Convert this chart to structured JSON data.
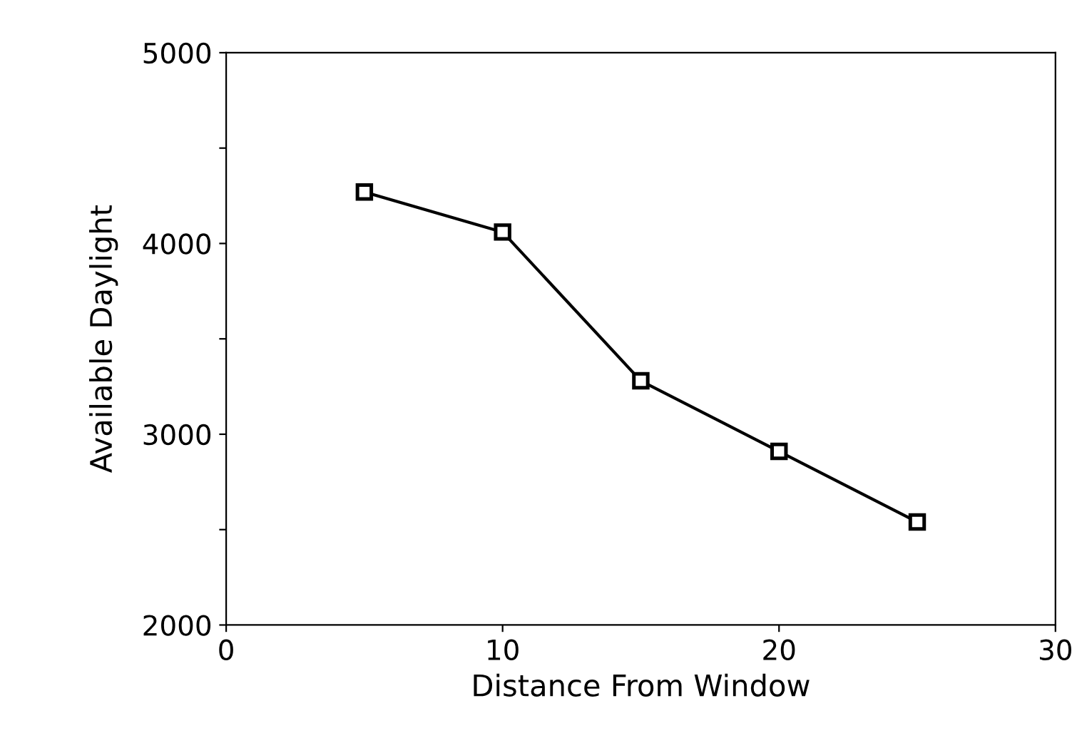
{
  "chart_data": {
    "type": "line",
    "xlabel": "Distance From Window",
    "ylabel": "Available Daylight",
    "x": [
      5,
      10,
      15,
      20,
      25
    ],
    "series": [
      {
        "color": "#000000",
        "values": [
          4270,
          4060,
          3280,
          2910,
          2540
        ]
      }
    ],
    "xlim": [
      0,
      30
    ],
    "xticks": [
      0,
      10,
      20,
      30
    ],
    "ylim": [
      2000,
      5000
    ],
    "yticks": [
      2000,
      {
        "value": 2500,
        "label": null
      },
      3000,
      {
        "value": 3500,
        "label": null
      },
      4000,
      {
        "value": 4500,
        "label": null
      },
      5000
    ],
    "marker": "square",
    "line_style": "solid",
    "grid": false,
    "legend": false
  }
}
